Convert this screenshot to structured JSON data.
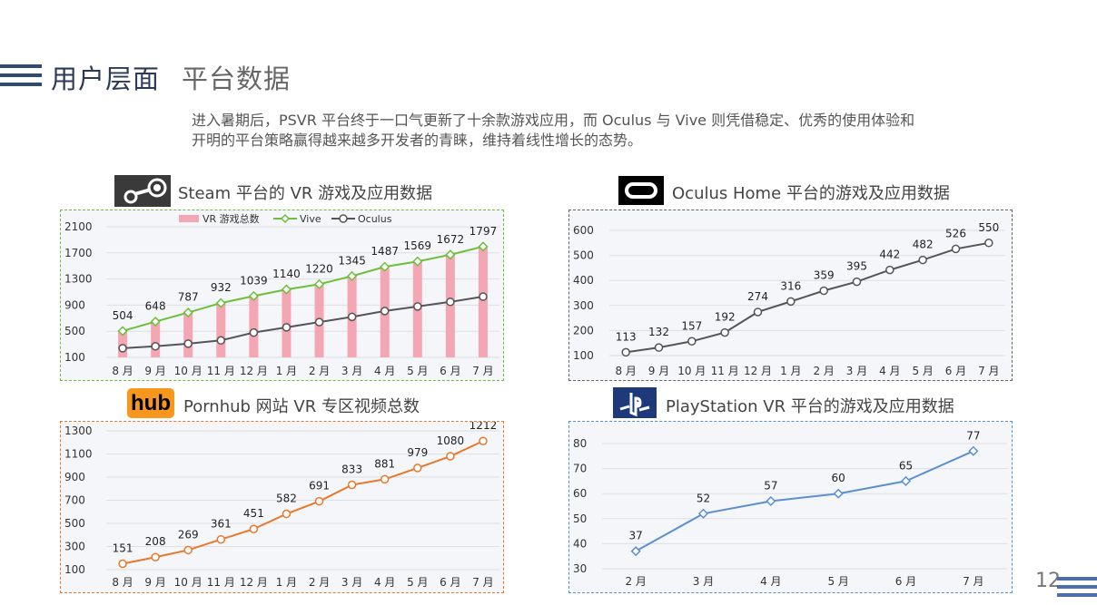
{
  "header": {
    "title": "用户层面",
    "subtitle": "平台数据"
  },
  "intro": "进入暑期后，PSVR 平台终于一口气更新了十余款游戏应用，而 Oculus 与 Vive 则凭借稳定、优秀的使用体验和开明的平台策略赢得越来越多开发者的青睐，维持着线性增长的态势。",
  "page_number": "12",
  "logos": {
    "pornhub": "hub"
  },
  "colors": {
    "steam_bar": "#f4a6b3",
    "vive": "#6cbf3a",
    "oculus_steam": "#555555",
    "oculus_home": "#555555",
    "pornhub": "#e8782b",
    "psvr": "#5b8fd1"
  },
  "chart_data": [
    {
      "id": "steam",
      "type": "bar+line",
      "title": "Steam 平台的 VR 游戏及应用数据",
      "categories": [
        "8 月",
        "9 月",
        "10 月",
        "11 月",
        "12 月",
        "1 月",
        "2 月",
        "3 月",
        "4 月",
        "5 月",
        "6 月",
        "7 月"
      ],
      "ylim": [
        100,
        2100
      ],
      "yticks": [
        100,
        500,
        900,
        1300,
        1700,
        2100
      ],
      "legend": "top",
      "series": [
        {
          "name": "VR 游戏总数",
          "kind": "bar",
          "values": [
            504,
            648,
            787,
            932,
            1039,
            1140,
            1220,
            1345,
            1487,
            1569,
            1672,
            1797
          ]
        },
        {
          "name": "Vive",
          "kind": "line",
          "marker": "diamond",
          "values": [
            504,
            648,
            787,
            932,
            1039,
            1140,
            1220,
            1345,
            1487,
            1569,
            1672,
            1797
          ]
        },
        {
          "name": "Oculus",
          "kind": "line",
          "marker": "circle",
          "values": [
            240,
            270,
            310,
            360,
            480,
            560,
            640,
            720,
            810,
            880,
            950,
            1030
          ]
        }
      ]
    },
    {
      "id": "oculus",
      "type": "line",
      "title": "Oculus Home 平台的游戏及应用数据",
      "categories": [
        "8 月",
        "9 月",
        "10 月",
        "11 月",
        "12 月",
        "1 月",
        "2 月",
        "3 月",
        "4 月",
        "5 月",
        "6 月",
        "7 月"
      ],
      "ylim": [
        100,
        600
      ],
      "yticks": [
        100,
        200,
        300,
        400,
        500,
        600
      ],
      "series": [
        {
          "values": [
            113,
            132,
            157,
            192,
            274,
            316,
            359,
            395,
            442,
            482,
            526,
            550
          ]
        }
      ]
    },
    {
      "id": "pornhub",
      "type": "line",
      "title": "Pornhub 网站 VR 专区视频总数",
      "categories": [
        "8 月",
        "9 月",
        "10 月",
        "11 月",
        "12 月",
        "1 月",
        "2 月",
        "3 月",
        "4 月",
        "5 月",
        "6 月",
        "7 月"
      ],
      "ylim": [
        100,
        1300
      ],
      "yticks": [
        100,
        300,
        500,
        700,
        900,
        1100,
        1300
      ],
      "series": [
        {
          "values": [
            151,
            208,
            269,
            361,
            451,
            582,
            691,
            833,
            881,
            979,
            1080,
            1212
          ]
        }
      ]
    },
    {
      "id": "psvr",
      "type": "line",
      "title": "PlayStation VR 平台的游戏及应用数据",
      "categories": [
        "2 月",
        "3 月",
        "4 月",
        "5 月",
        "6 月",
        "7 月"
      ],
      "ylim": [
        30,
        80
      ],
      "yticks": [
        30,
        40,
        50,
        60,
        70,
        80
      ],
      "series": [
        {
          "values": [
            37,
            52,
            57,
            60,
            65,
            77
          ]
        }
      ]
    }
  ]
}
